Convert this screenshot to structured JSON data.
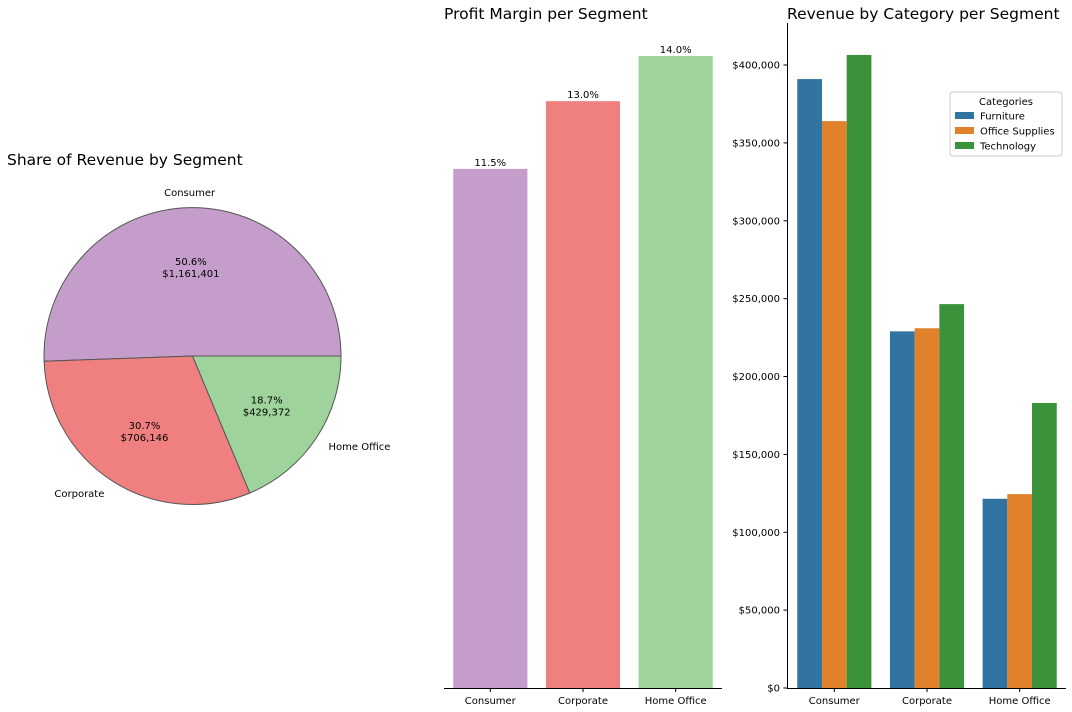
{
  "chart_data": [
    {
      "type": "pie",
      "title": "Share of Revenue by Segment",
      "labels": [
        "Consumer",
        "Corporate",
        "Home Office"
      ],
      "values": [
        1161401,
        706146,
        429372
      ],
      "percent_labels": [
        "50.6%",
        "30.7%",
        "18.7%"
      ],
      "value_labels": [
        "$1,161,401",
        "$706,146",
        "$429,372"
      ],
      "colors": [
        "#c59dca",
        "#f08080",
        "#9ed39c"
      ],
      "edge_color": "#555555"
    },
    {
      "type": "bar",
      "title": "Profit Margin per Segment",
      "categories": [
        "Consumer",
        "Corporate",
        "Home Office"
      ],
      "values": [
        11.5,
        13.0,
        14.0
      ],
      "data_labels": [
        "11.5%",
        "13.0%",
        "14.0%"
      ],
      "colors": [
        "#c59dca",
        "#f08080",
        "#9ed39c"
      ],
      "ylim": [
        0,
        14.0
      ],
      "show_y_axis": false
    },
    {
      "type": "bar",
      "title": "Revenue by Category per Segment",
      "categories": [
        "Consumer",
        "Corporate",
        "Home Office"
      ],
      "series": [
        {
          "name": "Furniture",
          "color": "#3274a1",
          "values": [
            391000,
            229000,
            121500
          ]
        },
        {
          "name": "Office Supplies",
          "color": "#e1812c",
          "values": [
            364000,
            231000,
            124500
          ]
        },
        {
          "name": "Technology",
          "color": "#3a923a",
          "values": [
            406500,
            246500,
            183000
          ]
        }
      ],
      "ylim": [
        0,
        427000
      ],
      "yticks": [
        0,
        50000,
        100000,
        150000,
        200000,
        250000,
        300000,
        350000,
        400000
      ],
      "ytick_labels": [
        "$0",
        "$50,000",
        "$100,000",
        "$150,000",
        "$200,000",
        "$250,000",
        "$300,000",
        "$350,000",
        "$400,000"
      ],
      "legend_title": "Categories",
      "legend_position": "upper-right"
    }
  ]
}
